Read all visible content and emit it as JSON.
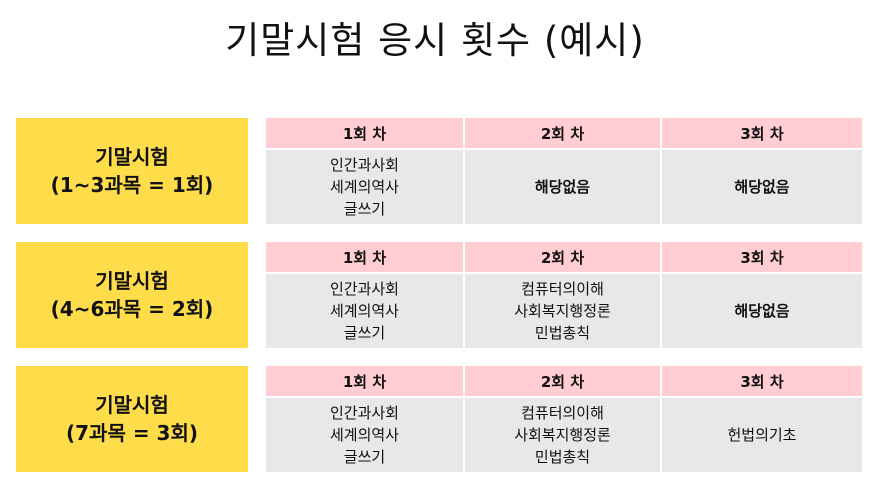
{
  "title": "기말시험 응시 횟수 (예시)",
  "colors": {
    "label_bg": "#FFDD4A",
    "header_bg": "#FFCDD2",
    "cell_bg": "#E8E8E8"
  },
  "blocks": [
    {
      "label1": "기말시험",
      "label2": "(1~3과목 = 1회)",
      "headers": [
        "1회 차",
        "2회 차",
        "3회 차"
      ],
      "cells": [
        [
          "인간과사회",
          "세계의역사",
          "글쓰기"
        ],
        [
          "해당없음"
        ],
        [
          "해당없음"
        ]
      ]
    },
    {
      "label1": "기말시험",
      "label2": "(4~6과목 = 2회)",
      "headers": [
        "1회 차",
        "2회 차",
        "3회 차"
      ],
      "cells": [
        [
          "인간과사회",
          "세계의역사",
          "글쓰기"
        ],
        [
          "컴퓨터의이해",
          "사회복지행정론",
          "민법총칙"
        ],
        [
          "해당없음"
        ]
      ]
    },
    {
      "label1": "기말시험",
      "label2": "(7과목 = 3회)",
      "headers": [
        "1회 차",
        "2회 차",
        "3회 차"
      ],
      "cells": [
        [
          "인간과사회",
          "세계의역사",
          "글쓰기"
        ],
        [
          "컴퓨터의이해",
          "사회복지행정론",
          "민법총칙"
        ],
        [
          "헌법의기초"
        ]
      ]
    }
  ]
}
